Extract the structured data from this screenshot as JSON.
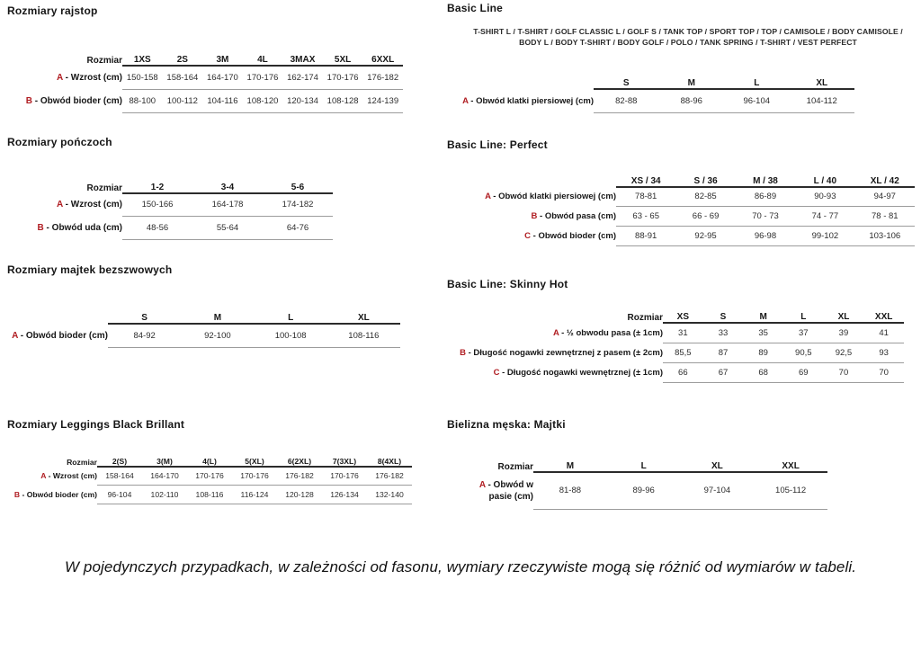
{
  "colors": {
    "accent_red": "#b01d22"
  },
  "page": {
    "footnote": "W pojedynczych przypadkach, w zależności od fasonu, wymiary rzeczywiste mogą się różnić od wymiarów w tabeli."
  },
  "sections": {
    "rajstop": {
      "title": "Rozmiary rajstop",
      "table": {
        "corner": "Rozmiar",
        "columns": [
          "1XS",
          "2S",
          "3M",
          "4L",
          "3MAX",
          "5XL",
          "6XXL"
        ],
        "rows": [
          {
            "letter": "A",
            "label": "Wzrost (cm)",
            "values": [
              "150-158",
              "158-164",
              "164-170",
              "170-176",
              "162-174",
              "170-176",
              "176-182"
            ]
          },
          {
            "letter": "B",
            "label": "Obwód bioder (cm)",
            "values": [
              "88-100",
              "100-112",
              "104-116",
              "108-120",
              "120-134",
              "108-128",
              "124-139"
            ]
          }
        ]
      }
    },
    "ponczoch": {
      "title": "Rozmiary pończoch",
      "table": {
        "corner": "Rozmiar",
        "columns": [
          "1-2",
          "3-4",
          "5-6"
        ],
        "rows": [
          {
            "letter": "A",
            "label": "Wzrost (cm)",
            "values": [
              "150-166",
              "164-178",
              "174-182"
            ]
          },
          {
            "letter": "B",
            "label": "Obwód uda (cm)",
            "values": [
              "48-56",
              "55-64",
              "64-76"
            ]
          }
        ]
      }
    },
    "majtek": {
      "title": "Rozmiary majtek bezszwowych",
      "table": {
        "corner": "",
        "columns": [
          "S",
          "M",
          "L",
          "XL"
        ],
        "rows": [
          {
            "letter": "A",
            "label": "Obwód bioder (cm)",
            "values": [
              "84-92",
              "92-100",
              "100-108",
              "108-116"
            ]
          }
        ]
      }
    },
    "leggings": {
      "title": "Rozmiary Leggings Black Brillant",
      "table": {
        "corner": "Rozmiar",
        "columns": [
          "2(S)",
          "3(M)",
          "4(L)",
          "5(XL)",
          "6(2XL)",
          "7(3XL)",
          "8(4XL)"
        ],
        "rows": [
          {
            "letter": "A",
            "label": "Wzrost (cm)",
            "values": [
              "158-164",
              "164-170",
              "170-176",
              "170-176",
              "176-182",
              "170-176",
              "176-182"
            ]
          },
          {
            "letter": "B",
            "label": "Obwód bioder (cm)",
            "values": [
              "96-104",
              "102-110",
              "108-116",
              "116-124",
              "120-128",
              "126-134",
              "132-140"
            ]
          }
        ]
      }
    },
    "basic": {
      "title": "Basic Line",
      "products": "T-SHIRT L / T-SHIRT / GOLF CLASSIC L / GOLF S / TANK TOP / SPORT TOP / TOP / CAMISOLE / BODY CAMISOLE / BODY L / BODY T-SHIRT / BODY GOLF / POLO / TANK SPRING / T-SHIRT / VEST PERFECT",
      "table": {
        "corner": "",
        "columns": [
          "S",
          "M",
          "L",
          "XL"
        ],
        "rows": [
          {
            "letter": "A",
            "label": "Obwód klatki piersiowej (cm)",
            "values": [
              "82-88",
              "88-96",
              "96-104",
              "104-112"
            ]
          }
        ]
      }
    },
    "perfect": {
      "title": "Basic Line: Perfect",
      "table": {
        "corner": "",
        "columns": [
          "XS / 34",
          "S / 36",
          "M / 38",
          "L / 40",
          "XL / 42"
        ],
        "rows": [
          {
            "letter": "A",
            "label": "Obwód klatki piersiowej (cm)",
            "values": [
              "78-81",
              "82-85",
              "86-89",
              "90-93",
              "94-97"
            ]
          },
          {
            "letter": "B",
            "label": "Obwód pasa (cm)",
            "values": [
              "63 - 65",
              "66 - 69",
              "70 - 73",
              "74 - 77",
              "78 - 81"
            ]
          },
          {
            "letter": "C",
            "label": "Obwód bioder (cm)",
            "values": [
              "88-91",
              "92-95",
              "96-98",
              "99-102",
              "103-106"
            ]
          }
        ]
      }
    },
    "skinny": {
      "title": "Basic Line: Skinny Hot",
      "table": {
        "corner": "Rozmiar",
        "columns": [
          "XS",
          "S",
          "M",
          "L",
          "XL",
          "XXL"
        ],
        "rows": [
          {
            "letter": "A",
            "label": "½ obwodu pasa (± 1cm)",
            "values": [
              "31",
              "33",
              "35",
              "37",
              "39",
              "41"
            ]
          },
          {
            "letter": "B",
            "label": "Długość nogawki zewnętrznej z pasem (± 2cm)",
            "values": [
              "85,5",
              "87",
              "89",
              "90,5",
              "92,5",
              "93"
            ]
          },
          {
            "letter": "C",
            "label": "Długość nogawki wewnętrznej (± 1cm)",
            "values": [
              "66",
              "67",
              "68",
              "69",
              "70",
              "70"
            ]
          }
        ]
      }
    },
    "bielizna": {
      "title": "Bielizna męska: Majtki",
      "table": {
        "corner": "Rozmiar",
        "columns": [
          "M",
          "L",
          "XL",
          "XXL"
        ],
        "rows": [
          {
            "letter": "A",
            "label": "Obwód w pasie (cm)",
            "values": [
              "81-88",
              "89-96",
              "97-104",
              "105-112"
            ]
          }
        ]
      }
    }
  }
}
